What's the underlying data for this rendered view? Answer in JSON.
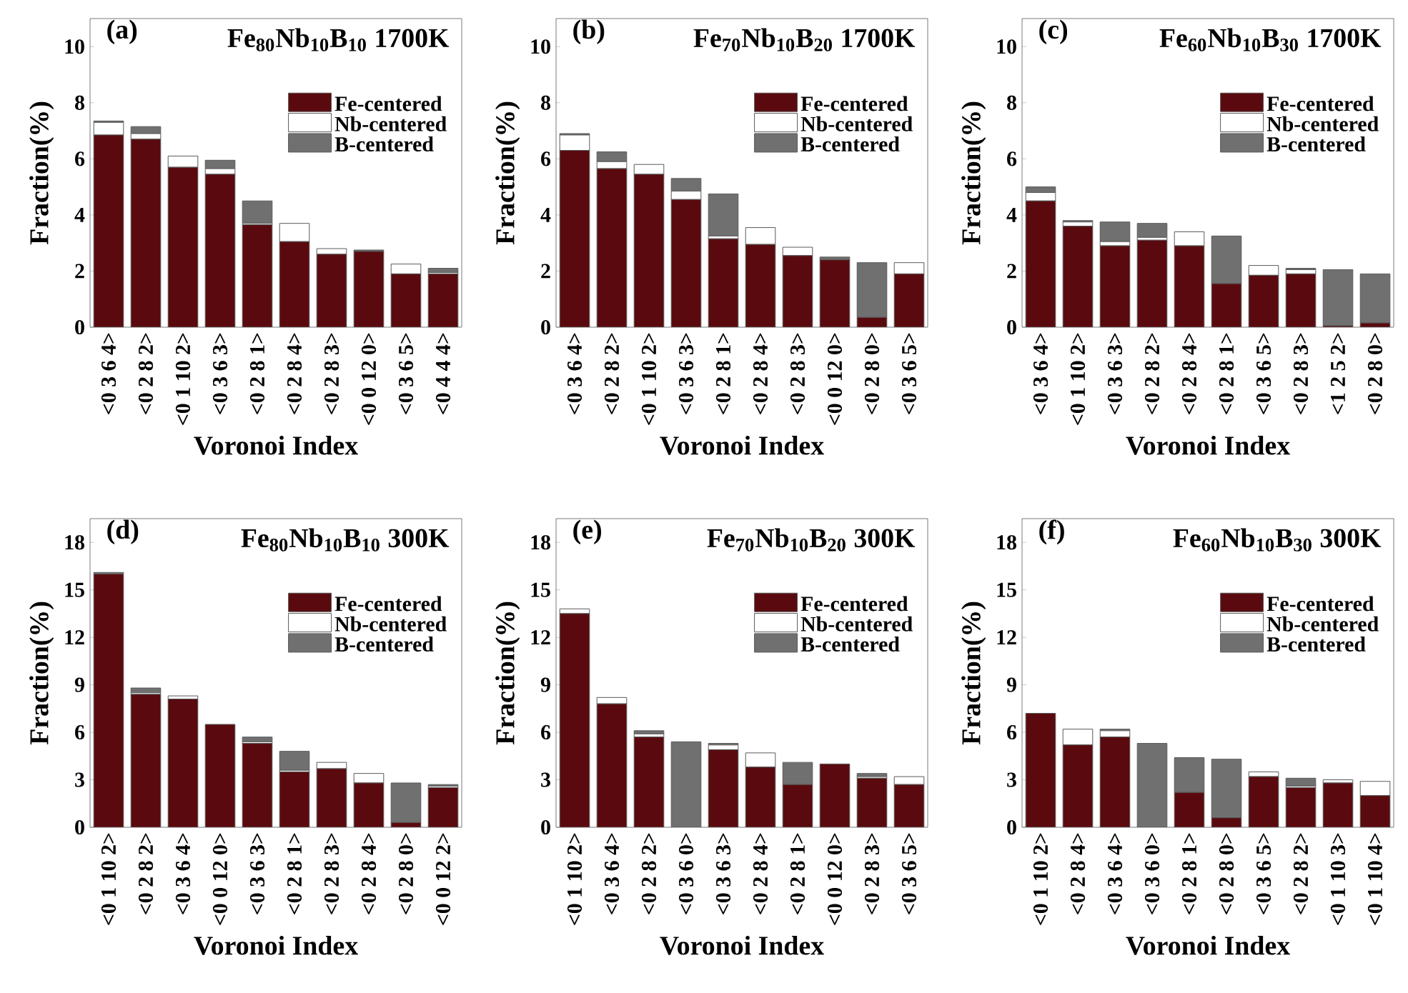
{
  "chart_data": [
    {
      "type": "bar",
      "stacked": true,
      "legend": "top right",
      "title": "(a)",
      "subtitle": "Fe$_{80}$Nb$_{10}$B$_{10}$ 1700K",
      "xlabel": "Voronoi Index",
      "ylabel": "Fraction(%)",
      "categories": [
        "<0 3 6 4>",
        "<0 2 8 2>",
        "<0 1 10 2>",
        "<0 3 6 3>",
        "<0 2 8 1>",
        "<0 2 8 4>",
        "<0 2 8 3>",
        "<0 0 12 0>",
        "<0 3 6 5>",
        "<0 4 4 4>"
      ],
      "ylim": [
        0,
        11
      ],
      "yticks": [
        0,
        2,
        4,
        6,
        8,
        10
      ],
      "series": [
        {
          "name": "Fe-centered",
          "color": "#5a0a0e",
          "values": [
            6.85,
            6.7,
            5.7,
            5.45,
            3.65,
            3.05,
            2.6,
            2.7,
            1.9,
            1.9
          ]
        },
        {
          "name": "Nb-centered",
          "color": "#ffffff",
          "values": [
            0.45,
            0.2,
            0.4,
            0.2,
            0.05,
            0.65,
            0.2,
            0,
            0.35,
            0.05
          ]
        },
        {
          "name": "B-centered",
          "color": "#707070",
          "values": [
            0.05,
            0.25,
            0,
            0.3,
            0.8,
            0,
            0,
            0.05,
            0,
            0.15
          ]
        }
      ]
    },
    {
      "type": "bar",
      "stacked": true,
      "legend": "top right",
      "title": "(b)",
      "subtitle": "Fe$_{70}$Nb$_{10}$B$_{20}$ 1700K",
      "xlabel": "Voronoi Index",
      "ylabel": "Fraction(%)",
      "categories": [
        "<0 3 6 4>",
        "<0 2 8 2>",
        "<0 1 10 2>",
        "<0 3 6 3>",
        "<0 2 8 1>",
        "<0 2 8 4>",
        "<0 2 8 3>",
        "<0 0 12 0>",
        "<0 2 8 0>",
        "<0 3 6 5>"
      ],
      "ylim": [
        0,
        11
      ],
      "yticks": [
        0,
        2,
        4,
        6,
        8,
        10
      ],
      "series": [
        {
          "name": "Fe-centered",
          "color": "#5a0a0e",
          "values": [
            6.3,
            5.65,
            5.45,
            4.55,
            3.15,
            2.95,
            2.55,
            2.4,
            0.35,
            1.9
          ]
        },
        {
          "name": "Nb-centered",
          "color": "#ffffff",
          "values": [
            0.55,
            0.25,
            0.35,
            0.3,
            0.1,
            0.6,
            0.3,
            0,
            0,
            0.4
          ]
        },
        {
          "name": "B-centered",
          "color": "#707070",
          "values": [
            0.05,
            0.35,
            0,
            0.45,
            1.5,
            0,
            0,
            0.1,
            1.95,
            0
          ]
        }
      ]
    },
    {
      "type": "bar",
      "stacked": true,
      "legend": "top right",
      "title": "(c)",
      "subtitle": "Fe$_{60}$Nb$_{10}$B$_{30}$ 1700K",
      "xlabel": "Voronoi Index",
      "ylabel": "Fraction(%)",
      "categories": [
        "<0 3 6 4>",
        "<0 1 10 2>",
        "<0 3 6 3>",
        "<0 2 8 2>",
        "<0 2 8 4>",
        "<0 2 8 1>",
        "<0 3 6 5>",
        "<0 2 8 3>",
        "<1 2 5 2>",
        "<0 2 8 0>"
      ],
      "ylim": [
        0,
        11
      ],
      "yticks": [
        0,
        2,
        4,
        6,
        8,
        10
      ],
      "series": [
        {
          "name": "Fe-centered",
          "color": "#5a0a0e",
          "values": [
            4.5,
            3.6,
            2.9,
            3.1,
            2.9,
            1.55,
            1.85,
            1.9,
            0.05,
            0.15
          ]
        },
        {
          "name": "Nb-centered",
          "color": "#ffffff",
          "values": [
            0.3,
            0.15,
            0.15,
            0.1,
            0.5,
            0,
            0.35,
            0.15,
            0,
            0
          ]
        },
        {
          "name": "B-centered",
          "color": "#707070",
          "values": [
            0.2,
            0.05,
            0.7,
            0.5,
            0,
            1.7,
            0,
            0.05,
            2.0,
            1.75
          ]
        }
      ]
    },
    {
      "type": "bar",
      "stacked": true,
      "legend": "top right",
      "title": "(d)",
      "subtitle": "Fe$_{80}$Nb$_{10}$B$_{10}$ 300K",
      "xlabel": "Voronoi Index",
      "ylabel": "Fraction(%)",
      "categories": [
        "<0 1 10 2>",
        "<0 2 8 2>",
        "<0 3 6 4>",
        "<0 0 12 0>",
        "<0 3 6 3>",
        "<0 2 8 1>",
        "<0 2 8 3>",
        "<0 2 8 4>",
        "<0 2 8 0>",
        "<0 0 12 2>"
      ],
      "ylim": [
        0,
        19.5
      ],
      "yticks": [
        0,
        3,
        6,
        9,
        12,
        15,
        18
      ],
      "series": [
        {
          "name": "Fe-centered",
          "color": "#5a0a0e",
          "values": [
            16.0,
            8.4,
            8.1,
            6.5,
            5.3,
            3.5,
            3.7,
            2.8,
            0.3,
            2.5
          ]
        },
        {
          "name": "Nb-centered",
          "color": "#ffffff",
          "values": [
            0,
            0.1,
            0.2,
            0,
            0.1,
            0.1,
            0.4,
            0.6,
            0,
            0.1
          ]
        },
        {
          "name": "B-centered",
          "color": "#707070",
          "values": [
            0.1,
            0.3,
            0,
            0,
            0.3,
            1.2,
            0,
            0,
            2.5,
            0.1
          ]
        }
      ]
    },
    {
      "type": "bar",
      "stacked": true,
      "legend": "top right",
      "title": "(e)",
      "subtitle": "Fe$_{70}$Nb$_{10}$B$_{20}$ 300K",
      "xlabel": "Voronoi Index",
      "ylabel": "Fraction(%)",
      "categories": [
        "<0 1 10 2>",
        "<0 3 6 4>",
        "<0 2 8 2>",
        "<0 3 6 0>",
        "<0 3 6 3>",
        "<0 2 8 4>",
        "<0 2 8 1>",
        "<0 0 12 0>",
        "<0 2 8 3>",
        "<0 3 6 5>"
      ],
      "ylim": [
        0,
        19.5
      ],
      "yticks": [
        0,
        3,
        6,
        9,
        12,
        15,
        18
      ],
      "series": [
        {
          "name": "Fe-centered",
          "color": "#5a0a0e",
          "values": [
            13.5,
            7.8,
            5.7,
            0,
            4.9,
            3.8,
            2.7,
            4.0,
            3.1,
            2.7
          ]
        },
        {
          "name": "Nb-centered",
          "color": "#ffffff",
          "values": [
            0.3,
            0.4,
            0.2,
            0,
            0.3,
            0.9,
            null,
            0,
            0.1,
            0.5
          ]
        },
        {
          "name": "B-centered",
          "color": "#707070",
          "values": [
            0,
            0,
            0.2,
            5.4,
            0.1,
            0,
            1.4,
            0,
            0.2,
            0
          ]
        }
      ]
    },
    {
      "type": "bar",
      "stacked": true,
      "legend": "top right",
      "title": "(f)",
      "subtitle": "Fe$_{60}$Nb$_{10}$B$_{30}$ 300K",
      "xlabel": "Voronoi Index",
      "ylabel": "Fraction(%)",
      "categories": [
        "<0 1 10 2>",
        "<0 2 8 4>",
        "<0 3 6 4>",
        "<0 3 6 0>",
        "<0 2 8 1>",
        "<0 2 8 0>",
        "<0 3 6 5>",
        "<0 2 8 2>",
        "<0 1 10 3>",
        "<0 1 10 4>"
      ],
      "ylim": [
        0,
        19.5
      ],
      "yticks": [
        0,
        3,
        6,
        9,
        12,
        15,
        18
      ],
      "series": [
        {
          "name": "Fe-centered",
          "color": "#5a0a0e",
          "values": [
            7.2,
            5.2,
            5.7,
            0,
            2.2,
            0.6,
            3.2,
            2.5,
            2.8,
            2.0
          ]
        },
        {
          "name": "Nb-centered",
          "color": "#ffffff",
          "values": [
            0,
            1.0,
            0.4,
            0,
            0,
            0,
            0.3,
            0.1,
            0.2,
            0.9
          ]
        },
        {
          "name": "B-centered",
          "color": "#707070",
          "values": [
            0,
            0,
            0.1,
            5.3,
            2.2,
            3.7,
            0,
            0.5,
            0,
            0
          ]
        }
      ]
    }
  ]
}
